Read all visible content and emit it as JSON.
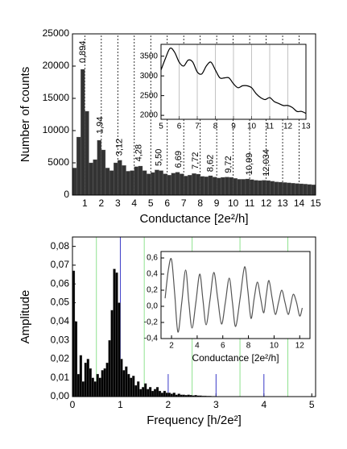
{
  "chart_data": [
    {
      "type": "histogram",
      "xlabel": "Conductance [2e²/h]",
      "ylabel": "Number of counts",
      "color": "#333333",
      "bins": [
        0.25,
        0.5,
        0.75,
        1.0,
        1.25,
        1.5,
        1.75,
        2.0,
        2.25,
        2.5,
        2.75,
        3.0,
        3.25,
        3.5,
        3.75,
        4.0,
        4.25,
        4.5,
        4.75,
        5.0,
        5.25,
        5.5,
        5.75,
        6.0,
        6.25,
        6.5,
        6.75,
        7.0,
        7.25,
        7.5,
        7.75,
        8.0,
        8.25,
        8.5,
        8.75,
        9.0,
        9.25,
        9.5,
        9.75,
        10.0,
        10.25,
        10.5,
        10.75,
        11.0,
        11.25,
        11.5,
        11.75,
        12.0,
        12.25,
        12.5,
        12.75,
        13.0,
        13.25,
        13.5,
        13.75,
        14.0,
        14.25,
        14.5,
        14.75,
        15.0
      ],
      "values": [
        4200,
        9000,
        19500,
        13000,
        5000,
        5500,
        8500,
        7000,
        4200,
        3800,
        5000,
        5400,
        4600,
        3700,
        3800,
        4400,
        4500,
        3800,
        3300,
        3500,
        3900,
        3800,
        3300,
        3100,
        3400,
        3550,
        3300,
        2950,
        3100,
        3350,
        3250,
        2900,
        2850,
        3000,
        2800,
        2650,
        2750,
        2800,
        2750,
        2600,
        2450,
        2450,
        2500,
        2400,
        2300,
        2250,
        2300,
        2250,
        2150,
        2050,
        2000,
        1950,
        1900,
        1850,
        1800,
        1750,
        1700,
        1650,
        1600
      ],
      "xlim": [
        0.25,
        15
      ],
      "ylim": [
        0,
        25000
      ],
      "xticks": [
        1,
        2,
        3,
        4,
        5,
        6,
        7,
        8,
        9,
        10,
        11,
        12,
        13,
        14,
        15
      ],
      "yticks": [
        0,
        5000,
        10000,
        15000,
        20000,
        25000
      ],
      "reference_lines": [
        {
          "x": 1
        },
        {
          "x": 2
        },
        {
          "x": 3
        },
        {
          "x": 4
        },
        {
          "x": 5
        },
        {
          "x": 6
        },
        {
          "x": 7
        },
        {
          "x": 8
        },
        {
          "x": 9
        },
        {
          "x": 10
        },
        {
          "x": 11
        },
        {
          "x": 12
        },
        {
          "x": 13
        },
        {
          "x": 14
        }
      ],
      "annotations": [
        {
          "text": "0,894",
          "x": 0.894,
          "y": 20000
        },
        {
          "text": "1,94",
          "x": 1.94,
          "y": 9000
        },
        {
          "text": "3,12",
          "x": 3.12,
          "y": 5600
        },
        {
          "text": "4,28",
          "x": 4.28,
          "y": 4700
        },
        {
          "text": "5,50",
          "x": 5.5,
          "y": 4000
        },
        {
          "text": "6,69",
          "x": 6.69,
          "y": 3700
        },
        {
          "text": "7,72",
          "x": 7.72,
          "y": 3500
        },
        {
          "text": "8,62",
          "x": 8.62,
          "y": 3100
        },
        {
          "text": "9,72",
          "x": 9.72,
          "y": 2900
        },
        {
          "text": "10,99",
          "x": 10.99,
          "y": 2600
        },
        {
          "text": "12,034",
          "x": 12.034,
          "y": 2400
        }
      ]
    },
    {
      "type": "line",
      "color": "#000000",
      "grid": "x",
      "x": [
        5.0,
        5.25,
        5.5,
        5.75,
        6.0,
        6.25,
        6.5,
        6.75,
        7.0,
        7.25,
        7.5,
        7.75,
        8.0,
        8.25,
        8.5,
        8.75,
        9.0,
        9.25,
        9.5,
        9.75,
        10.0,
        10.25,
        10.5,
        10.75,
        11.0,
        11.25,
        11.5,
        11.75,
        12.0,
        12.25,
        12.5,
        12.75,
        13.0
      ],
      "values": [
        3150,
        3450,
        3700,
        3600,
        3350,
        3250,
        3400,
        3350,
        3100,
        3050,
        3250,
        3350,
        3150,
        2950,
        2950,
        2950,
        2800,
        2700,
        2750,
        2750,
        2700,
        2550,
        2450,
        2400,
        2450,
        2350,
        2300,
        2250,
        2250,
        2200,
        2100,
        2100,
        2050
      ],
      "xlim": [
        5,
        13
      ],
      "ylim": [
        1900,
        3800
      ],
      "xticks": [
        5,
        6,
        7,
        8,
        9,
        10,
        11,
        12,
        13
      ],
      "yticks": [
        2000,
        2500,
        3000,
        3500
      ]
    },
    {
      "type": "histogram",
      "xlabel": "Frequency [h/2e²]",
      "ylabel": "Amplitude",
      "color": "#000000",
      "bins": [
        0,
        0.05,
        0.1,
        0.15,
        0.2,
        0.25,
        0.3,
        0.35,
        0.4,
        0.45,
        0.5,
        0.55,
        0.6,
        0.65,
        0.7,
        0.75,
        0.8,
        0.85,
        0.9,
        0.95,
        1.0,
        1.05,
        1.1,
        1.15,
        1.2,
        1.25,
        1.3,
        1.35,
        1.4,
        1.45,
        1.5,
        1.55,
        1.6,
        1.65,
        1.7,
        1.75,
        1.8,
        1.85,
        1.9,
        1.95,
        2.0,
        2.05,
        2.1,
        2.15,
        2.2,
        2.25,
        2.3,
        2.35,
        2.4,
        2.45,
        2.5,
        2.55,
        2.6,
        2.65,
        2.7,
        2.75,
        2.8,
        2.85,
        2.9,
        2.95,
        3.0
      ],
      "values": [
        0.067,
        0.04,
        0.012,
        0.022,
        0.008,
        0.018,
        0.02,
        0.015,
        0.01,
        0.008,
        0.012,
        0.01,
        0.014,
        0.015,
        0.018,
        0.03,
        0.046,
        0.068,
        0.066,
        0.05,
        0.02,
        0.014,
        0.016,
        0.012,
        0.01,
        0.011,
        0.006,
        0.008,
        0.004,
        0.005,
        0.007,
        0.004,
        0.005,
        0.003,
        0.004,
        0.005,
        0.003,
        0.002,
        0.003,
        0.002,
        0.002,
        0.0015,
        0.002,
        0.001,
        0.0015,
        0.001,
        0.001,
        0.0008,
        0.001,
        0.0008,
        0.0006,
        0.0008,
        0.0005,
        0.0005,
        0.0004,
        0.0004,
        0.0003,
        0.0003,
        0.0002,
        0.0002
      ],
      "xlim": [
        0,
        5.08
      ],
      "ylim": [
        0,
        0.085
      ],
      "xticks": [
        0,
        1,
        2,
        3,
        4,
        5
      ],
      "yticks": [
        {
          "value": 0,
          "label": "0,00"
        },
        {
          "value": 0.01,
          "label": "0,01"
        },
        {
          "value": 0.02,
          "label": "0,02"
        },
        {
          "value": 0.03,
          "label": "0,03"
        },
        {
          "value": 0.04,
          "label": "0,04"
        },
        {
          "value": 0.05,
          "label": "0,05"
        },
        {
          "value": 0.06,
          "label": "0,06"
        },
        {
          "value": 0.07,
          "label": "0,07"
        },
        {
          "value": 0.08,
          "label": "0,08"
        }
      ],
      "reference_lines": [
        {
          "x": 0.5,
          "y": 0.085,
          "color": "#8fe28f"
        },
        {
          "x": 1,
          "y": 0.085,
          "color": "#3a3ac8"
        },
        {
          "x": 1.5,
          "y": 0.085,
          "color": "#8fe28f"
        },
        {
          "x": 2,
          "y": 0.012,
          "color": "#3a3ac8"
        },
        {
          "x": 2.5,
          "y": 0.085,
          "color": "#8fe28f"
        },
        {
          "x": 3,
          "y": 0.012,
          "color": "#3a3ac8"
        },
        {
          "x": 3.5,
          "y": 0.085,
          "color": "#8fe28f"
        },
        {
          "x": 4,
          "y": 0.012,
          "color": "#3a3ac8"
        },
        {
          "x": 4.5,
          "y": 0.085,
          "color": "#8fe28f"
        }
      ]
    },
    {
      "type": "line",
      "xlabel": "Conductance [2e²/h]",
      "color": "#555555",
      "x": [
        1.5,
        1.75,
        2.0,
        2.25,
        2.5,
        2.8,
        3.1,
        3.35,
        3.6,
        3.9,
        4.2,
        4.45,
        4.7,
        5.0,
        5.3,
        5.6,
        5.9,
        6.2,
        6.5,
        6.75,
        7.0,
        7.35,
        7.7,
        7.95,
        8.2,
        8.45,
        8.7,
        8.95,
        9.2,
        9.4,
        9.6,
        9.85,
        10.1,
        10.35,
        10.6,
        10.85,
        11.1,
        11.3,
        11.5,
        11.75,
        12.0,
        12.2
      ],
      "values": [
        0.1,
        0.45,
        0.58,
        0.15,
        -0.32,
        0.05,
        0.45,
        0.05,
        -0.27,
        0.05,
        0.4,
        0.08,
        -0.23,
        0.08,
        0.42,
        0.1,
        -0.22,
        0.05,
        0.35,
        0.05,
        -0.25,
        0.1,
        0.49,
        0.2,
        -0.15,
        0.1,
        0.3,
        0.1,
        -0.08,
        0.15,
        0.32,
        0.1,
        -0.1,
        0.05,
        0.2,
        0.05,
        -0.1,
        0.02,
        0.15,
        0.05,
        -0.12,
        -0.02
      ],
      "xlim": [
        1.18,
        12.8
      ],
      "ylim": [
        -0.4,
        0.68
      ],
      "xticks": [
        2,
        4,
        6,
        8,
        10,
        12
      ],
      "yticks": [
        {
          "value": -0.4,
          "label": "-0,4"
        },
        {
          "value": -0.2,
          "label": "-0,2"
        },
        {
          "value": 0,
          "label": "0,0"
        },
        {
          "value": 0.2,
          "label": "0,2"
        },
        {
          "value": 0.4,
          "label": "0,4"
        },
        {
          "value": 0.6,
          "label": "0,6"
        }
      ]
    }
  ]
}
